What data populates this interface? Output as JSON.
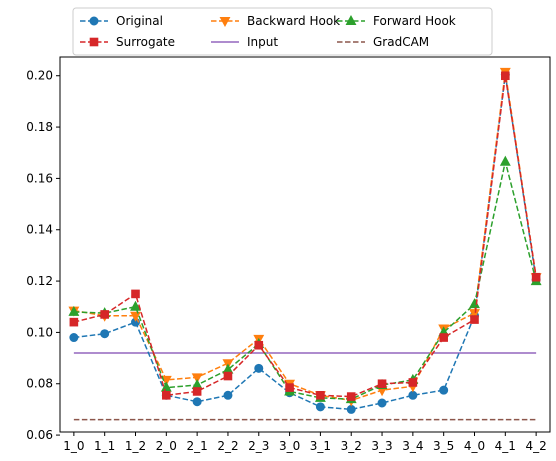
{
  "chart_data": {
    "type": "line",
    "title": "",
    "xlabel": "",
    "ylabel": "",
    "categories": [
      "1_0",
      "1_1",
      "1_2",
      "2_0",
      "2_1",
      "2_2",
      "2_3",
      "3_0",
      "3_1",
      "3_2",
      "3_3",
      "3_4",
      "3_5",
      "4_0",
      "4_1",
      "4_2"
    ],
    "ylim": [
      0.0612,
      0.2073
    ],
    "yticks": [
      0.06,
      0.08,
      0.1,
      0.12,
      0.14,
      0.16,
      0.18,
      0.2
    ],
    "ytick_labels": [
      "0.06",
      "0.08",
      "0.10",
      "0.12",
      "0.14",
      "0.16",
      "0.18",
      "0.20"
    ],
    "grid": false,
    "legend": {
      "placement": "top-center-outside",
      "columns": 3
    },
    "series": [
      {
        "name": "Original",
        "color": "#1f77b4",
        "style": "dashed",
        "marker": "circle",
        "values": [
          0.098,
          0.0995,
          0.104,
          0.0755,
          0.073,
          0.0755,
          0.086,
          0.0765,
          0.071,
          0.07,
          0.0725,
          0.0755,
          0.0775,
          0.1065,
          0.2005,
          0.1205
        ]
      },
      {
        "name": "Backward Hook",
        "color": "#ff7f0e",
        "style": "dashed",
        "marker": "triangle-down",
        "values": [
          0.1085,
          0.1065,
          0.1065,
          0.0815,
          0.0825,
          0.088,
          0.0975,
          0.08,
          0.0755,
          0.0735,
          0.0775,
          0.079,
          0.1015,
          0.1075,
          0.2015,
          0.1215
        ]
      },
      {
        "name": "Forward Hook",
        "color": "#2ca02c",
        "style": "dashed",
        "marker": "triangle-up",
        "values": [
          0.108,
          0.1075,
          0.11,
          0.0785,
          0.0795,
          0.0855,
          0.0955,
          0.077,
          0.0745,
          0.074,
          0.0795,
          0.0815,
          0.1,
          0.111,
          0.1665,
          0.12
        ]
      },
      {
        "name": "Surrogate",
        "color": "#d62728",
        "style": "dashed",
        "marker": "square",
        "values": [
          0.104,
          0.107,
          0.115,
          0.0755,
          0.077,
          0.083,
          0.095,
          0.0785,
          0.0755,
          0.075,
          0.08,
          0.0805,
          0.098,
          0.105,
          0.2,
          0.1215
        ]
      },
      {
        "name": "Input",
        "color": "#9467bd",
        "style": "solid",
        "marker": "none",
        "values": [
          0.092,
          0.092,
          0.092,
          0.092,
          0.092,
          0.092,
          0.092,
          0.092,
          0.092,
          0.092,
          0.092,
          0.092,
          0.092,
          0.092,
          0.092,
          0.092
        ]
      },
      {
        "name": "GradCAM",
        "color": "#8c564b",
        "style": "dashed",
        "marker": "none",
        "values": [
          0.066,
          0.066,
          0.066,
          0.066,
          0.066,
          0.066,
          0.066,
          0.066,
          0.066,
          0.066,
          0.066,
          0.066,
          0.066,
          0.066,
          0.066,
          0.066
        ]
      }
    ]
  }
}
